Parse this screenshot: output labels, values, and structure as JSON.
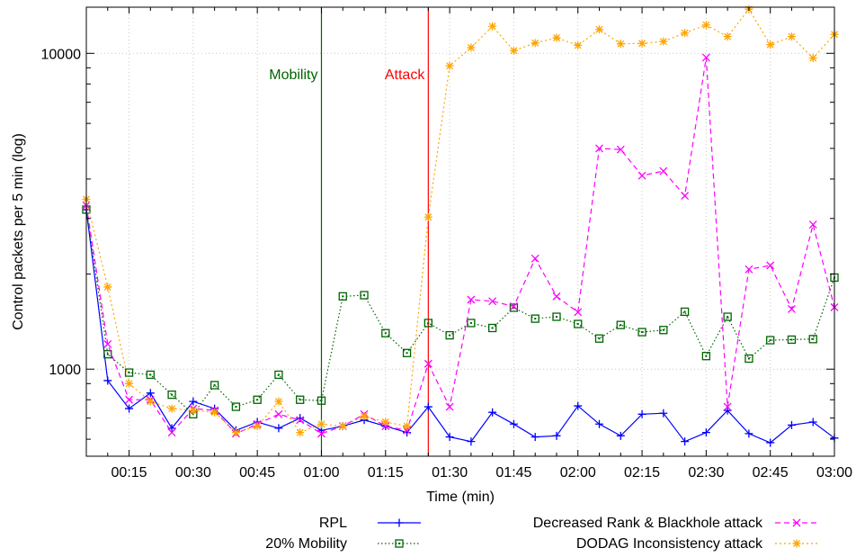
{
  "chart_data": {
    "type": "line",
    "title": "",
    "xlabel": "Time (min)",
    "ylabel": "Control packets per 5 min (log)",
    "y_scale": "log",
    "x_range_minutes": [
      5,
      180
    ],
    "ylim": [
      530,
      14000
    ],
    "grid": true,
    "legend_position": "bottom",
    "x_ticks": [
      {
        "value": 15,
        "label": "00:15"
      },
      {
        "value": 30,
        "label": "00:30"
      },
      {
        "value": 45,
        "label": "00:45"
      },
      {
        "value": 60,
        "label": "01:00"
      },
      {
        "value": 75,
        "label": "01:15"
      },
      {
        "value": 90,
        "label": "01:30"
      },
      {
        "value": 105,
        "label": "01:45"
      },
      {
        "value": 120,
        "label": "02:00"
      },
      {
        "value": 135,
        "label": "02:15"
      },
      {
        "value": 150,
        "label": "02:30"
      },
      {
        "value": 165,
        "label": "02:45"
      },
      {
        "value": 180,
        "label": "03:00"
      }
    ],
    "y_ticks": [
      {
        "value": 1000,
        "label": "1000"
      },
      {
        "value": 10000,
        "label": "10000"
      }
    ],
    "x": [
      5,
      10,
      15,
      20,
      25,
      30,
      35,
      40,
      45,
      50,
      55,
      60,
      65,
      70,
      75,
      80,
      85,
      90,
      95,
      100,
      105,
      110,
      115,
      120,
      125,
      130,
      135,
      140,
      145,
      150,
      155,
      160,
      165,
      170,
      175,
      180
    ],
    "annotations": [
      {
        "label": "Mobility",
        "x": 60,
        "color": "#006400"
      },
      {
        "label": "Attack",
        "x": 85,
        "color": "#ff0000"
      }
    ],
    "series": [
      {
        "name": "RPL",
        "color": "#0000ff",
        "dash": "",
        "marker": "plus",
        "values": [
          3200,
          920,
          750,
          840,
          650,
          790,
          750,
          640,
          680,
          650,
          700,
          640,
          660,
          690,
          660,
          630,
          760,
          610,
          590,
          730,
          670,
          610,
          615,
          765,
          670,
          615,
          720,
          725,
          590,
          630,
          740,
          625,
          585,
          665,
          680,
          605
        ]
      },
      {
        "name": "20% Mobility",
        "color": "#006400",
        "dash": "1.5,2.5",
        "marker": "square",
        "values": [
          3200,
          1115,
          975,
          960,
          830,
          720,
          890,
          760,
          800,
          960,
          800,
          795,
          1700,
          1715,
          1300,
          1125,
          1400,
          1280,
          1400,
          1350,
          1565,
          1445,
          1465,
          1390,
          1250,
          1380,
          1310,
          1330,
          1520,
          1100,
          1465,
          1080,
          1235,
          1240,
          1245,
          1950
        ]
      },
      {
        "name": "Decreased Rank & Blackhole attack",
        "color": "#ff00ff",
        "dash": "6,4",
        "marker": "cross",
        "values": [
          3300,
          1200,
          800,
          800,
          630,
          750,
          740,
          625,
          670,
          720,
          690,
          625,
          660,
          720,
          660,
          640,
          1040,
          760,
          1660,
          1640,
          1580,
          2240,
          1700,
          1515,
          5000,
          4960,
          4100,
          4240,
          3540,
          9700,
          760,
          2070,
          2130,
          1550,
          2870,
          1570
        ]
      },
      {
        "name": "DODAG Inconsistency attack",
        "color": "#ffa500",
        "dash": "2,3",
        "marker": "star",
        "values": [
          3450,
          1820,
          900,
          790,
          750,
          740,
          730,
          630,
          660,
          790,
          630,
          670,
          660,
          710,
          680,
          660,
          3030,
          9130,
          10430,
          12180,
          10200,
          10780,
          11200,
          10600,
          11900,
          10720,
          10750,
          10900,
          11600,
          12300,
          11300,
          13800,
          10650,
          11300,
          9660,
          11480
        ]
      }
    ]
  }
}
